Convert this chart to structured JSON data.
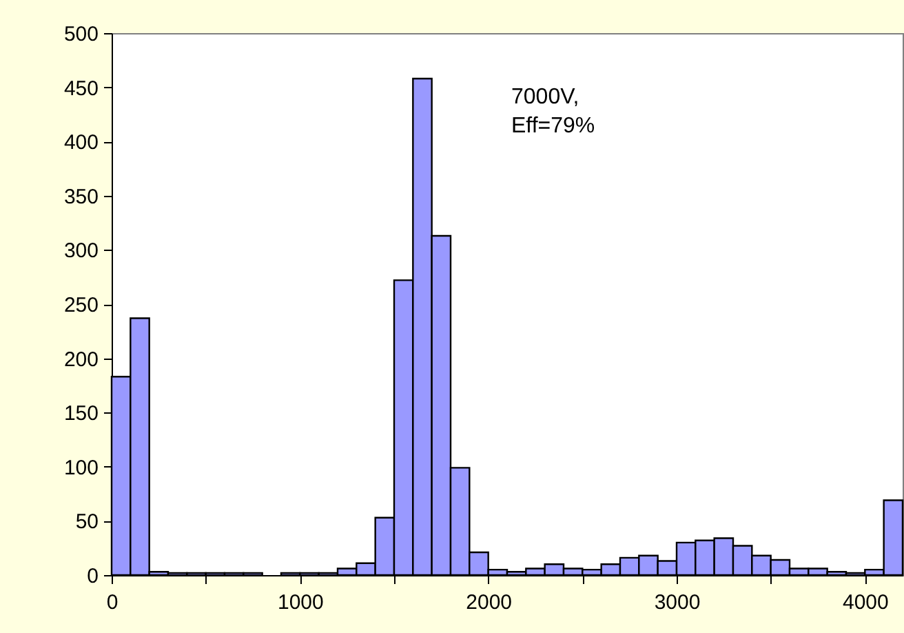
{
  "chart_data": {
    "type": "histogram",
    "color": "#9999ff",
    "bins": [
      0,
      100,
      200,
      300,
      400,
      500,
      600,
      700,
      800,
      900,
      1000,
      1100,
      1200,
      1300,
      1400,
      1500,
      1600,
      1700,
      1800,
      1900,
      2000,
      2100,
      2200,
      2300,
      2400,
      2500,
      2600,
      2700,
      2800,
      2900,
      3000,
      3100,
      3200,
      3300,
      3400,
      3500,
      3600,
      3700,
      3800,
      3900,
      4000,
      4100,
      4200
    ],
    "values": [
      183,
      237,
      3,
      2,
      2,
      2,
      2,
      2,
      0,
      2,
      2,
      2,
      6,
      11,
      53,
      272,
      458,
      313,
      99,
      21,
      5,
      3,
      6,
      10,
      6,
      5,
      10,
      16,
      18,
      13,
      30,
      32,
      34,
      27,
      18,
      14,
      6,
      6,
      3,
      2,
      5,
      69
    ],
    "xlim": [
      0,
      4200
    ],
    "xticks": [
      0,
      {
        "value": 500,
        "label": null
      },
      1000,
      {
        "value": 1500,
        "label": null
      },
      2000,
      {
        "value": 2500,
        "label": null
      },
      3000,
      {
        "value": 3500,
        "label": null
      },
      4000
    ],
    "ylim": [
      0,
      500
    ],
    "yticks": [
      0,
      50,
      100,
      150,
      200,
      250,
      300,
      350,
      400,
      450,
      500
    ],
    "annotations": [
      "7000V,",
      "Eff=79%"
    ]
  }
}
